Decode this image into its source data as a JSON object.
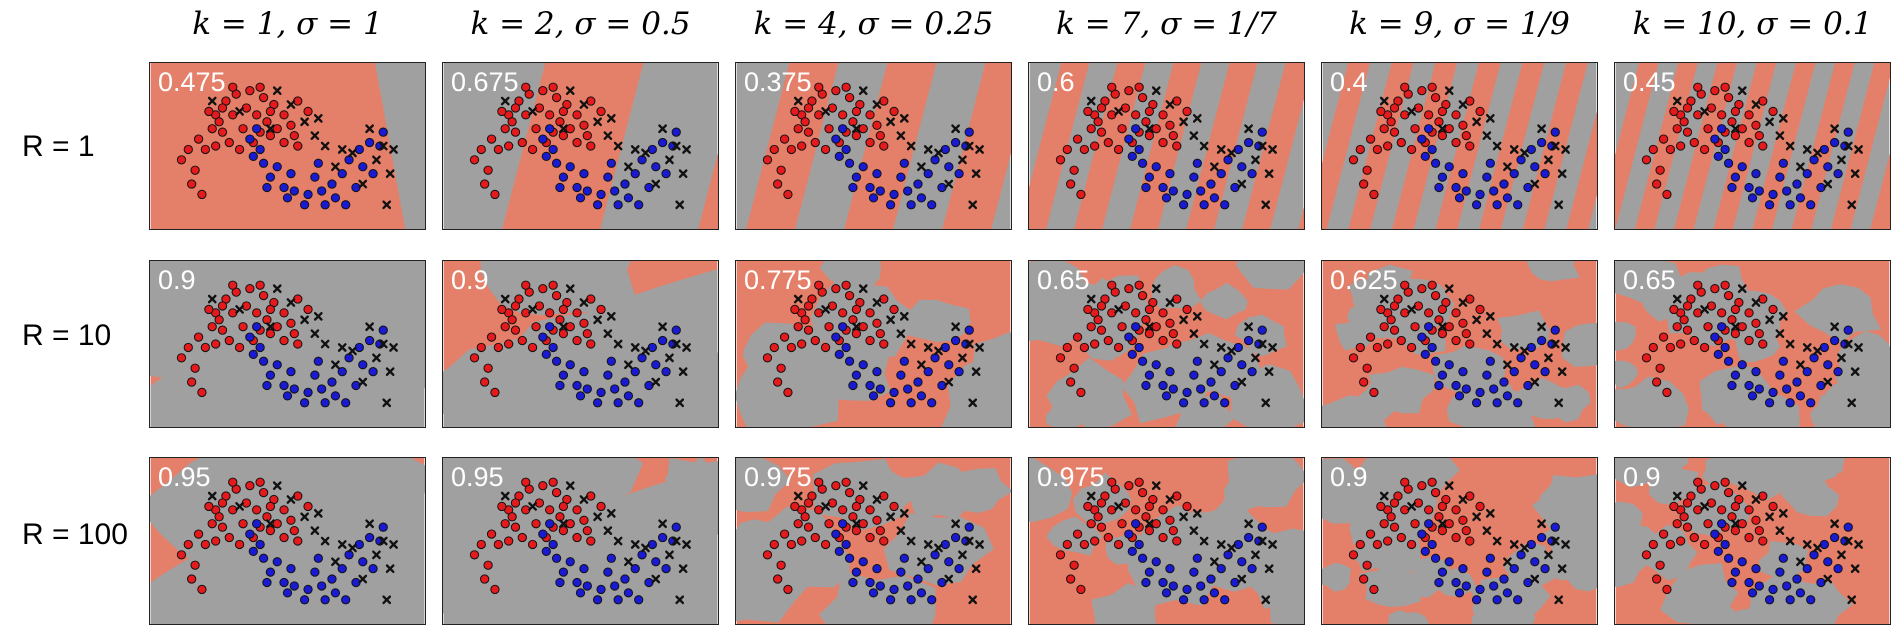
{
  "chart_data": {
    "type": "scatter",
    "columns": [
      {
        "label": "k = 1, σ = 1",
        "k": 1,
        "sigma": 1
      },
      {
        "label": "k = 2, σ = 0.5",
        "k": 2,
        "sigma": 0.5
      },
      {
        "label": "k = 4, σ = 0.25",
        "k": 4,
        "sigma": 0.25
      },
      {
        "label": "k = 7, σ = 1/7",
        "k": 7,
        "sigma": 0.142857
      },
      {
        "label": "k = 9, σ = 1/9",
        "k": 9,
        "sigma": 0.111111
      },
      {
        "label": "k = 10, σ = 0.1",
        "k": 10,
        "sigma": 0.1
      }
    ],
    "rows": [
      {
        "label": "R = 1",
        "R": 1
      },
      {
        "label": "R = 10",
        "R": 10
      },
      {
        "label": "R = 100",
        "R": 100
      }
    ],
    "accuracy": [
      [
        "0.475",
        "0.675",
        "0.375",
        "0.6",
        "0.4",
        "0.45"
      ],
      [
        "0.9",
        "0.9",
        "0.775",
        "0.65",
        "0.625",
        "0.65"
      ],
      [
        "0.95",
        "0.95",
        "0.975",
        "0.975",
        "0.9",
        "0.9"
      ]
    ],
    "colors": {
      "region_a": "#e48069",
      "region_b": "#a0a0a0",
      "class_red": "#e41a1c",
      "class_blue": "#1a1ad2",
      "point_edge": "#111111"
    },
    "points_circle": [
      [
        -0.55,
        0.55
      ],
      [
        -0.4,
        0.75
      ],
      [
        -0.25,
        0.85
      ],
      [
        -0.05,
        0.9
      ],
      [
        0.15,
        0.8
      ],
      [
        0.3,
        0.7
      ],
      [
        0.45,
        0.55
      ],
      [
        0.55,
        0.4
      ],
      [
        0.6,
        0.25
      ],
      [
        0.65,
        0.1
      ],
      [
        -0.6,
        0.35
      ],
      [
        -0.8,
        0.2
      ],
      [
        -0.95,
        0.05
      ],
      [
        -1.05,
        -0.1
      ],
      [
        -0.85,
        -0.25
      ],
      [
        -0.7,
        0.05
      ],
      [
        -0.45,
        0.3
      ],
      [
        -0.3,
        0.55
      ],
      [
        -0.1,
        0.65
      ],
      [
        0.05,
        0.55
      ],
      [
        0.2,
        0.45
      ],
      [
        0.35,
        0.35
      ],
      [
        0.1,
        0.3
      ],
      [
        -0.15,
        0.35
      ],
      [
        -0.5,
        0.45
      ],
      [
        -0.65,
        0.6
      ],
      [
        -0.35,
        0.15
      ],
      [
        0.0,
        0.15
      ],
      [
        0.45,
        0.15
      ],
      [
        -0.9,
        -0.45
      ],
      [
        -0.75,
        -0.6
      ],
      [
        -0.55,
        0.1
      ],
      [
        -0.2,
        0.05
      ],
      [
        0.25,
        0.6
      ],
      [
        -0.3,
        0.95
      ],
      [
        0.1,
        0.95
      ],
      [
        0.25,
        0.25
      ],
      [
        -0.45,
        0.65
      ],
      [
        0.8,
        0.6
      ],
      [
        0.65,
        0.75
      ],
      [
        0.1,
        0.05
      ],
      [
        0.15,
        -0.15
      ],
      [
        0.25,
        -0.35
      ],
      [
        0.45,
        -0.5
      ],
      [
        0.6,
        -0.55
      ],
      [
        0.8,
        -0.6
      ],
      [
        1.0,
        -0.55
      ],
      [
        1.15,
        -0.45
      ],
      [
        1.3,
        -0.3
      ],
      [
        1.4,
        -0.1
      ],
      [
        1.55,
        0.05
      ],
      [
        1.7,
        0.15
      ],
      [
        1.85,
        0.1
      ],
      [
        1.6,
        -0.2
      ],
      [
        1.75,
        -0.3
      ],
      [
        0.55,
        -0.3
      ],
      [
        0.35,
        -0.2
      ],
      [
        0.9,
        -0.35
      ],
      [
        0.75,
        -0.75
      ],
      [
        1.05,
        -0.75
      ],
      [
        0.0,
        -0.05
      ],
      [
        -0.05,
        0.2
      ],
      [
        1.2,
        -0.65
      ],
      [
        1.5,
        -0.5
      ],
      [
        0.95,
        -0.15
      ],
      [
        0.2,
        -0.5
      ],
      [
        1.9,
        0.3
      ],
      [
        0.5,
        -0.65
      ],
      [
        1.35,
        -0.75
      ],
      [
        0.05,
        0.35
      ]
    ],
    "points_cross": [
      [
        0.75,
        0.45
      ],
      [
        0.9,
        0.25
      ],
      [
        0.55,
        0.7
      ],
      [
        -0.2,
        0.6
      ],
      [
        0.35,
        0.9
      ],
      [
        1.05,
        0.1
      ],
      [
        0.95,
        0.5
      ],
      [
        0.25,
        0.35
      ],
      [
        -0.6,
        0.75
      ],
      [
        1.2,
        -0.2
      ],
      [
        1.6,
        -0.45
      ],
      [
        1.8,
        -0.1
      ],
      [
        1.9,
        0.1
      ],
      [
        2.0,
        -0.3
      ],
      [
        1.45,
        0.0
      ],
      [
        1.95,
        -0.75
      ],
      [
        1.7,
        0.35
      ],
      [
        1.3,
        0.05
      ],
      [
        2.05,
        0.05
      ]
    ]
  }
}
